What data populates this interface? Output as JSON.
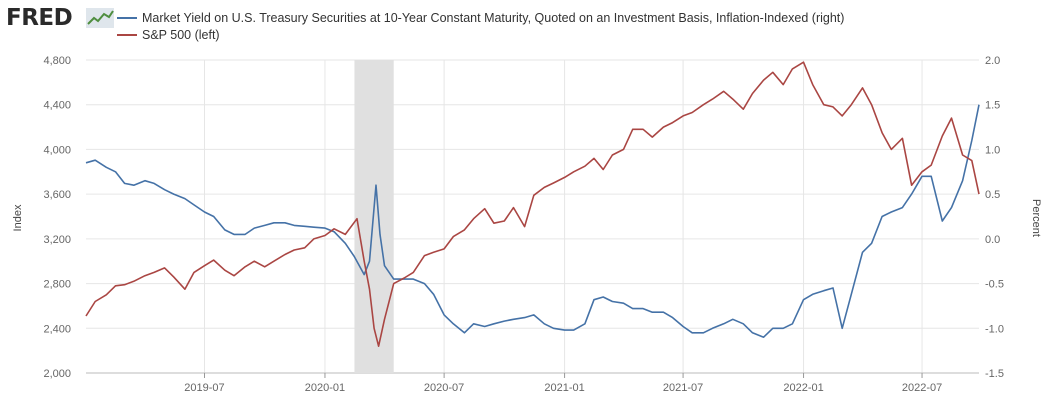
{
  "header": {
    "logo_text": "FRED",
    "logo_icon": "fred-chart-icon"
  },
  "colors": {
    "yield": "#4572a7",
    "sp500": "#aa4643",
    "recession": "#e0e0e0",
    "grid": "#e6e6e6"
  },
  "chart_data": {
    "type": "line",
    "legend": [
      {
        "label": "Market Yield on U.S. Treasury Securities at 10-Year Constant Maturity, Quoted on an Investment Basis, Inflation-Indexed (right)",
        "color": "#4572a7"
      },
      {
        "label": "S&P 500 (left)",
        "color": "#aa4643"
      }
    ],
    "legend_placement": "top-left",
    "grid": true,
    "xlim": [
      "2019-01-01",
      "2022-09-26"
    ],
    "x_ticks": [
      "2019-07",
      "2020-01",
      "2020-07",
      "2021-01",
      "2021-07",
      "2022-01",
      "2022-07"
    ],
    "left_axis": {
      "label": "Index",
      "ylim": [
        2000,
        4800
      ],
      "ticks": [
        "2,000",
        "2,400",
        "2,800",
        "3,200",
        "3,600",
        "4,000",
        "4,400",
        "4,800"
      ]
    },
    "right_axis": {
      "label": "Percent",
      "ylim": [
        -1.5,
        2.0
      ],
      "ticks": [
        "-1.5",
        "-1.0",
        "-0.5",
        "0.0",
        "0.5",
        "1.0",
        "1.5",
        "2.0"
      ]
    },
    "recession_shading": [
      [
        "2020-02-15",
        "2020-04-15"
      ]
    ],
    "series": [
      {
        "name": "Market Yield on U.S. Treasury Securities at 10-Year Constant Maturity, Quoted on an Investment Basis, Inflation-Indexed",
        "axis": "right",
        "x": [
          "2019-01-01",
          "2019-01-15",
          "2019-02-01",
          "2019-02-15",
          "2019-03-01",
          "2019-03-15",
          "2019-04-01",
          "2019-04-15",
          "2019-05-01",
          "2019-05-15",
          "2019-06-01",
          "2019-06-15",
          "2019-07-01",
          "2019-07-15",
          "2019-08-01",
          "2019-08-15",
          "2019-09-01",
          "2019-09-15",
          "2019-10-01",
          "2019-10-15",
          "2019-11-01",
          "2019-11-15",
          "2019-12-01",
          "2019-12-15",
          "2020-01-01",
          "2020-01-15",
          "2020-02-01",
          "2020-02-15",
          "2020-03-01",
          "2020-03-09",
          "2020-03-19",
          "2020-03-25",
          "2020-04-01",
          "2020-04-15",
          "2020-05-01",
          "2020-05-15",
          "2020-06-01",
          "2020-06-15",
          "2020-07-01",
          "2020-07-15",
          "2020-08-01",
          "2020-08-15",
          "2020-09-01",
          "2020-09-15",
          "2020-10-01",
          "2020-10-15",
          "2020-11-01",
          "2020-11-15",
          "2020-12-01",
          "2020-12-15",
          "2021-01-01",
          "2021-01-15",
          "2021-02-01",
          "2021-02-15",
          "2021-03-01",
          "2021-03-15",
          "2021-04-01",
          "2021-04-15",
          "2021-05-01",
          "2021-05-15",
          "2021-06-01",
          "2021-06-15",
          "2021-07-01",
          "2021-07-15",
          "2021-08-01",
          "2021-08-15",
          "2021-09-01",
          "2021-09-15",
          "2021-10-01",
          "2021-10-15",
          "2021-11-01",
          "2021-11-15",
          "2021-12-01",
          "2021-12-15",
          "2022-01-01",
          "2022-01-15",
          "2022-02-01",
          "2022-02-15",
          "2022-03-01",
          "2022-03-15",
          "2022-04-01",
          "2022-04-15",
          "2022-05-01",
          "2022-05-15",
          "2022-06-01",
          "2022-06-15",
          "2022-07-01",
          "2022-07-15",
          "2022-08-01",
          "2022-08-15",
          "2022-09-01",
          "2022-09-15",
          "2022-09-26"
        ],
        "values": [
          0.85,
          0.88,
          0.8,
          0.75,
          0.62,
          0.6,
          0.65,
          0.62,
          0.55,
          0.5,
          0.45,
          0.38,
          0.3,
          0.25,
          0.1,
          0.05,
          0.05,
          0.12,
          0.15,
          0.18,
          0.18,
          0.15,
          0.14,
          0.13,
          0.12,
          0.08,
          -0.05,
          -0.2,
          -0.4,
          -0.25,
          0.6,
          0.05,
          -0.3,
          -0.45,
          -0.45,
          -0.45,
          -0.5,
          -0.62,
          -0.85,
          -0.95,
          -1.05,
          -0.95,
          -0.98,
          -0.95,
          -0.92,
          -0.9,
          -0.88,
          -0.85,
          -0.95,
          -1.0,
          -1.02,
          -1.02,
          -0.95,
          -0.68,
          -0.65,
          -0.7,
          -0.72,
          -0.78,
          -0.78,
          -0.82,
          -0.82,
          -0.88,
          -0.98,
          -1.05,
          -1.05,
          -1.0,
          -0.95,
          -0.9,
          -0.95,
          -1.05,
          -1.1,
          -1.0,
          -1.0,
          -0.95,
          -0.68,
          -0.62,
          -0.58,
          -0.55,
          -1.0,
          -0.62,
          -0.15,
          -0.05,
          0.25,
          0.3,
          0.35,
          0.5,
          0.7,
          0.7,
          0.2,
          0.35,
          0.65,
          1.1,
          1.5
        ]
      },
      {
        "name": "S&P 500",
        "axis": "left",
        "x": [
          "2019-01-01",
          "2019-01-15",
          "2019-02-01",
          "2019-02-15",
          "2019-03-01",
          "2019-03-15",
          "2019-04-01",
          "2019-04-15",
          "2019-05-01",
          "2019-05-15",
          "2019-06-01",
          "2019-06-15",
          "2019-07-01",
          "2019-07-15",
          "2019-08-01",
          "2019-08-15",
          "2019-09-01",
          "2019-09-15",
          "2019-10-01",
          "2019-10-15",
          "2019-11-01",
          "2019-11-15",
          "2019-12-01",
          "2019-12-15",
          "2020-01-01",
          "2020-01-15",
          "2020-02-01",
          "2020-02-19",
          "2020-03-01",
          "2020-03-09",
          "2020-03-16",
          "2020-03-23",
          "2020-04-01",
          "2020-04-15",
          "2020-05-01",
          "2020-05-15",
          "2020-06-01",
          "2020-06-15",
          "2020-07-01",
          "2020-07-15",
          "2020-08-01",
          "2020-08-15",
          "2020-09-01",
          "2020-09-15",
          "2020-10-01",
          "2020-10-15",
          "2020-11-01",
          "2020-11-15",
          "2020-12-01",
          "2020-12-15",
          "2021-01-01",
          "2021-01-15",
          "2021-02-01",
          "2021-02-15",
          "2021-03-01",
          "2021-03-15",
          "2021-04-01",
          "2021-04-15",
          "2021-05-01",
          "2021-05-15",
          "2021-06-01",
          "2021-06-15",
          "2021-07-01",
          "2021-07-15",
          "2021-08-01",
          "2021-08-15",
          "2021-09-01",
          "2021-09-15",
          "2021-10-01",
          "2021-10-15",
          "2021-11-01",
          "2021-11-15",
          "2021-12-01",
          "2021-12-15",
          "2022-01-01",
          "2022-01-15",
          "2022-02-01",
          "2022-02-15",
          "2022-03-01",
          "2022-03-15",
          "2022-04-01",
          "2022-04-15",
          "2022-05-01",
          "2022-05-15",
          "2022-06-01",
          "2022-06-15",
          "2022-07-01",
          "2022-07-15",
          "2022-08-01",
          "2022-08-15",
          "2022-09-01",
          "2022-09-15",
          "2022-09-26"
        ],
        "values": [
          2510,
          2640,
          2700,
          2780,
          2790,
          2820,
          2870,
          2900,
          2940,
          2860,
          2750,
          2900,
          2960,
          3010,
          2920,
          2870,
          2950,
          3000,
          2950,
          3000,
          3060,
          3100,
          3120,
          3200,
          3230,
          3290,
          3240,
          3380,
          3000,
          2750,
          2400,
          2240,
          2480,
          2800,
          2850,
          2900,
          3050,
          3080,
          3110,
          3220,
          3280,
          3380,
          3470,
          3340,
          3360,
          3480,
          3310,
          3590,
          3660,
          3700,
          3750,
          3800,
          3850,
          3920,
          3820,
          3950,
          4000,
          4180,
          4180,
          4110,
          4200,
          4240,
          4300,
          4330,
          4400,
          4450,
          4520,
          4450,
          4360,
          4500,
          4620,
          4690,
          4580,
          4720,
          4780,
          4580,
          4400,
          4380,
          4300,
          4400,
          4550,
          4400,
          4150,
          4000,
          4100,
          3680,
          3800,
          3860,
          4120,
          4280,
          3950,
          3900,
          3600
        ]
      }
    ]
  }
}
